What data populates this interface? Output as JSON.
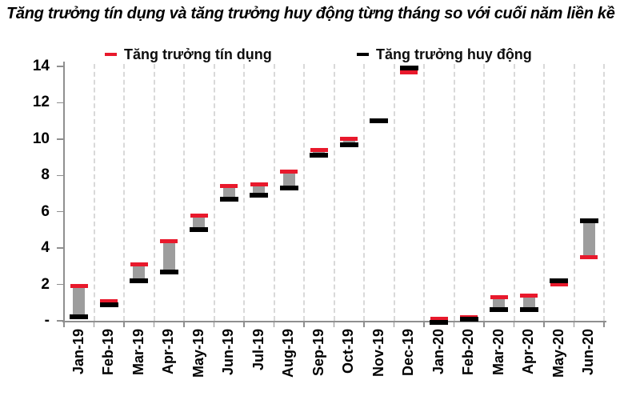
{
  "title": "Tăng trưởng tín dụng và tăng trưởng huy động từng tháng so với cuối năm liền kề",
  "colors": {
    "credit": "#e8192c",
    "deposit": "#000000",
    "bar_fill": "#9d9d9d",
    "axis": "#8f8f8f",
    "gridline": "#d9d9d9"
  },
  "legend": {
    "credit_label": "Tăng trưởng tín dụng",
    "deposit_label": "Tăng trưởng huy động"
  },
  "chart_data": {
    "type": "bar",
    "subtype": "floating-range-bar",
    "title": "Tăng trưởng tín dụng và tăng trưởng huy động từng tháng so với cuối năm liền kề",
    "categories": [
      "Jan-19",
      "Feb-19",
      "Mar-19",
      "Apr-19",
      "May-19",
      "Jun-19",
      "Jul-19",
      "Aug-19",
      "Sep-19",
      "Oct-19",
      "Nov-19",
      "Dec-19",
      "Jan-20",
      "Feb-20",
      "Mar-20",
      "Apr-20",
      "May-20",
      "Jun-20"
    ],
    "series": [
      {
        "name": "Tăng trưởng tín dụng",
        "marker": "red-dash",
        "values": [
          1.9,
          1.1,
          3.1,
          4.4,
          5.8,
          7.4,
          7.5,
          8.2,
          9.4,
          10.0,
          11.0,
          13.65,
          0.1,
          0.2,
          1.3,
          1.4,
          2.0,
          3.5
        ]
      },
      {
        "name": "Tăng trưởng huy động",
        "marker": "black-dash",
        "values": [
          0.2,
          0.9,
          2.2,
          2.7,
          5.0,
          6.7,
          6.9,
          7.3,
          9.1,
          9.7,
          11.0,
          13.9,
          -0.1,
          0.1,
          0.6,
          0.6,
          2.2,
          5.5
        ]
      }
    ],
    "xlabel": "",
    "ylabel": "",
    "ylim": [
      0,
      14
    ],
    "yticks": [
      {
        "label": "14",
        "value": 14
      },
      {
        "label": "12",
        "value": 12
      },
      {
        "label": "10",
        "value": 10
      },
      {
        "label": "8",
        "value": 8
      },
      {
        "label": "6",
        "value": 6
      },
      {
        "label": "4",
        "value": 4
      },
      {
        "label": "2",
        "value": 2
      },
      {
        "label": "-",
        "value": 0
      }
    ],
    "grid": "vertical-dashed",
    "legend_position": "top"
  }
}
